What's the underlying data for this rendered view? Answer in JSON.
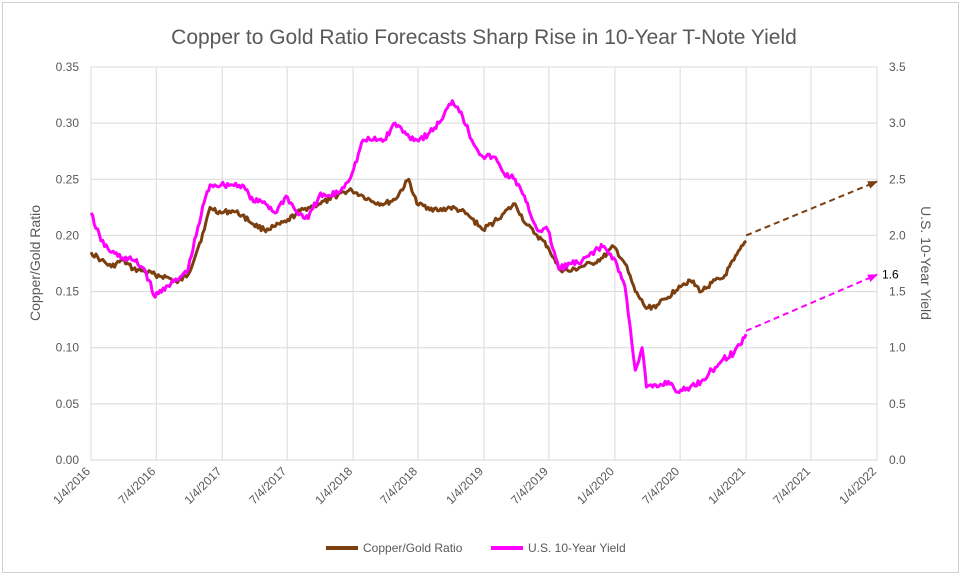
{
  "chart_data": {
    "type": "line",
    "title": "Copper to Gold Ratio Forecasts Sharp Rise in 10-Year T-Note Yield",
    "ylabel": "Copper/Gold Ratio",
    "y2label": "U.S. 10-Year Yield",
    "ylim": [
      0,
      0.35
    ],
    "y2lim": [
      0,
      3.5
    ],
    "yticks": [
      "0.00",
      "0.05",
      "0.10",
      "0.15",
      "0.20",
      "0.25",
      "0.30",
      "0.35"
    ],
    "y2ticks": [
      "0.0",
      "0.5",
      "1.0",
      "1.5",
      "2.0",
      "2.5",
      "3.0",
      "3.5"
    ],
    "xticks": [
      "1/4/2016",
      "7/4/2016",
      "1/4/2017",
      "7/4/2017",
      "1/4/2018",
      "7/4/2018",
      "1/4/2019",
      "7/4/2019",
      "1/4/2020",
      "7/4/2020",
      "1/4/2021",
      "7/4/2021",
      "1/4/2022"
    ],
    "grid": true,
    "legend": "bottom",
    "series": [
      {
        "name": "Copper/Gold Ratio",
        "axis": "left",
        "color": "#7B3F10",
        "x": [
          "2016-01-04",
          "2016-02-01",
          "2016-03-01",
          "2016-04-01",
          "2016-05-01",
          "2016-06-01",
          "2016-07-01",
          "2016-08-01",
          "2016-09-01",
          "2016-10-01",
          "2016-11-15",
          "2016-12-01",
          "2017-01-01",
          "2017-02-01",
          "2017-03-01",
          "2017-04-01",
          "2017-05-01",
          "2017-06-01",
          "2017-07-01",
          "2017-08-01",
          "2017-09-01",
          "2017-10-01",
          "2017-11-01",
          "2017-12-01",
          "2018-01-01",
          "2018-02-01",
          "2018-03-01",
          "2018-04-01",
          "2018-05-01",
          "2018-06-08",
          "2018-07-01",
          "2018-08-01",
          "2018-09-01",
          "2018-10-01",
          "2018-11-01",
          "2018-12-01",
          "2019-01-01",
          "2019-02-01",
          "2019-03-01",
          "2019-04-01",
          "2019-05-01",
          "2019-06-01",
          "2019-07-01",
          "2019-08-01",
          "2019-09-01",
          "2019-10-01",
          "2019-11-01",
          "2019-12-01",
          "2020-01-01",
          "2020-02-01",
          "2020-03-01",
          "2020-04-01",
          "2020-05-01",
          "2020-06-01",
          "2020-07-01",
          "2020-08-01",
          "2020-09-01",
          "2020-10-01",
          "2020-11-01",
          "2020-12-01",
          "2021-01-04"
        ],
        "values": [
          0.185,
          0.178,
          0.172,
          0.178,
          0.17,
          0.168,
          0.165,
          0.163,
          0.158,
          0.165,
          0.205,
          0.225,
          0.22,
          0.222,
          0.218,
          0.21,
          0.205,
          0.208,
          0.212,
          0.22,
          0.225,
          0.228,
          0.232,
          0.238,
          0.24,
          0.235,
          0.23,
          0.228,
          0.232,
          0.25,
          0.228,
          0.225,
          0.222,
          0.225,
          0.222,
          0.215,
          0.205,
          0.212,
          0.22,
          0.228,
          0.21,
          0.2,
          0.19,
          0.17,
          0.168,
          0.172,
          0.175,
          0.18,
          0.19,
          0.175,
          0.15,
          0.135,
          0.138,
          0.145,
          0.155,
          0.16,
          0.15,
          0.158,
          0.162,
          0.178,
          0.195
        ]
      },
      {
        "name": "U.S. 10-Year Yield",
        "axis": "right",
        "color": "#FF00FF",
        "x": [
          "2016-01-04",
          "2016-02-01",
          "2016-03-01",
          "2016-04-01",
          "2016-05-01",
          "2016-06-01",
          "2016-07-01",
          "2016-08-01",
          "2016-09-01",
          "2016-10-01",
          "2016-11-15",
          "2016-12-01",
          "2017-01-01",
          "2017-02-01",
          "2017-03-01",
          "2017-04-01",
          "2017-05-01",
          "2017-06-01",
          "2017-07-01",
          "2017-08-01",
          "2017-09-01",
          "2017-10-01",
          "2017-11-01",
          "2017-12-01",
          "2018-01-01",
          "2018-02-01",
          "2018-03-01",
          "2018-04-01",
          "2018-05-01",
          "2018-06-01",
          "2018-07-01",
          "2018-08-01",
          "2018-09-01",
          "2018-10-08",
          "2018-11-01",
          "2018-12-01",
          "2019-01-01",
          "2019-02-01",
          "2019-03-01",
          "2019-04-01",
          "2019-05-01",
          "2019-06-01",
          "2019-07-01",
          "2019-08-01",
          "2019-09-01",
          "2019-10-01",
          "2019-11-01",
          "2019-12-01",
          "2020-01-01",
          "2020-02-01",
          "2020-03-01",
          "2020-03-20",
          "2020-04-01",
          "2020-05-01",
          "2020-06-01",
          "2020-07-01",
          "2020-08-01",
          "2020-09-01",
          "2020-10-01",
          "2020-11-01",
          "2020-12-01",
          "2021-01-04"
        ],
        "values": [
          2.2,
          1.95,
          1.85,
          1.8,
          1.78,
          1.7,
          1.45,
          1.55,
          1.6,
          1.7,
          2.3,
          2.45,
          2.45,
          2.45,
          2.45,
          2.3,
          2.3,
          2.2,
          2.35,
          2.2,
          2.15,
          2.35,
          2.35,
          2.4,
          2.55,
          2.85,
          2.85,
          2.85,
          3.0,
          2.9,
          2.85,
          2.9,
          3.0,
          3.2,
          3.1,
          2.85,
          2.7,
          2.7,
          2.55,
          2.5,
          2.3,
          2.05,
          2.05,
          1.7,
          1.75,
          1.75,
          1.85,
          1.9,
          1.8,
          1.55,
          0.8,
          1.0,
          0.65,
          0.65,
          0.7,
          0.6,
          0.65,
          0.7,
          0.8,
          0.9,
          0.95,
          1.12
        ]
      }
    ],
    "forecasts": [
      {
        "series": "Copper/Gold Ratio",
        "axis": "left",
        "from": [
          "2021-01-04",
          0.2
        ],
        "to": [
          "2022-01-04",
          0.248
        ],
        "color": "#7B3F10"
      },
      {
        "series": "U.S. 10-Year Yield",
        "axis": "right",
        "from": [
          "2021-01-04",
          1.15
        ],
        "to": [
          "2022-01-04",
          1.65
        ],
        "color": "#FF00FF"
      }
    ],
    "annotations": [
      {
        "text": "1.6",
        "axis": "right",
        "x": "2022-01-04",
        "y": 1.65
      }
    ]
  }
}
